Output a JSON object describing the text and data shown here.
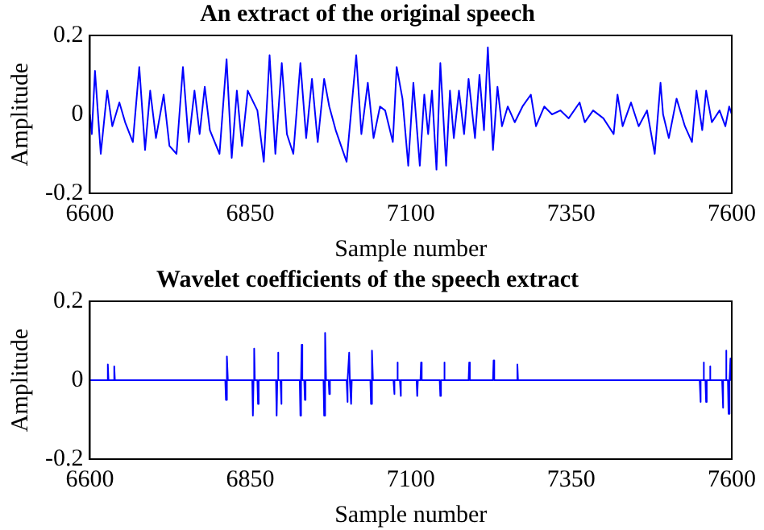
{
  "chart_data": [
    {
      "type": "line",
      "title": "An extract of the original speech",
      "xlabel": "Sample number",
      "ylabel": "Amplitude",
      "color": "#0000ff",
      "xlim": [
        6600,
        7600
      ],
      "xticks": [
        6600,
        6850,
        7100,
        7350,
        7600
      ],
      "ylim": [
        -0.2,
        0.2
      ],
      "yticks": [
        -0.2,
        0,
        0.2
      ],
      "x": [
        6600,
        6603,
        6608,
        6617,
        6627,
        6635,
        6646,
        6655,
        6667,
        6677,
        6686,
        6694,
        6703,
        6715,
        6724,
        6735,
        6745,
        6754,
        6763,
        6771,
        6779,
        6787,
        6802,
        6813,
        6821,
        6829,
        6837,
        6846,
        6861,
        6871,
        6880,
        6889,
        6899,
        6907,
        6917,
        6928,
        6937,
        6946,
        6955,
        6965,
        6973,
        6983,
        7000,
        7015,
        7023,
        7033,
        7042,
        7052,
        7060,
        7072,
        7078,
        7087,
        7096,
        7104,
        7114,
        7121,
        7127,
        7133,
        7140,
        7146,
        7155,
        7161,
        7167,
        7175,
        7183,
        7190,
        7200,
        7207,
        7214,
        7220,
        7228,
        7235,
        7242,
        7251,
        7262,
        7274,
        7287,
        7295,
        7308,
        7320,
        7333,
        7346,
        7363,
        7371,
        7384,
        7400,
        7416,
        7422,
        7430,
        7443,
        7455,
        7468,
        7480,
        7489,
        7493,
        7502,
        7514,
        7527,
        7538,
        7545,
        7554,
        7560,
        7569,
        7581,
        7590,
        7596,
        7600
      ],
      "values": [
        0,
        -0.05,
        0.11,
        -0.1,
        0.06,
        -0.03,
        0.03,
        -0.02,
        -0.07,
        0.12,
        -0.09,
        0.06,
        -0.06,
        0.05,
        -0.08,
        -0.1,
        0.12,
        -0.07,
        0.06,
        -0.05,
        0.07,
        -0.04,
        -0.1,
        0.14,
        -0.11,
        0.06,
        -0.08,
        0.06,
        0.01,
        -0.12,
        0.15,
        -0.1,
        0.13,
        -0.05,
        -0.1,
        0.13,
        -0.06,
        0.09,
        -0.07,
        0.09,
        0.02,
        -0.04,
        -0.12,
        0.15,
        -0.05,
        0.08,
        -0.06,
        0.02,
        0.01,
        -0.07,
        0.12,
        0.04,
        -0.13,
        0.08,
        -0.13,
        0.05,
        -0.05,
        0.06,
        -0.14,
        0.13,
        -0.13,
        0.06,
        -0.06,
        0.06,
        -0.05,
        0.09,
        -0.06,
        0.1,
        -0.04,
        0.17,
        -0.09,
        0.07,
        -0.03,
        0.02,
        -0.02,
        0.02,
        0.05,
        -0.03,
        0.02,
        0,
        0.01,
        -0.01,
        0.03,
        -0.02,
        0.01,
        -0.01,
        -0.05,
        0.05,
        -0.03,
        0.03,
        -0.03,
        0.01,
        -0.1,
        0.08,
        0,
        -0.06,
        0.04,
        -0.03,
        -0.07,
        0.06,
        -0.04,
        0.06,
        -0.02,
        0.01,
        -0.03,
        0.02,
        0
      ]
    },
    {
      "type": "line",
      "title": "Wavelet coefficients of the speech extract",
      "xlabel": "Sample number",
      "ylabel": "Amplitude",
      "color": "#0000ff",
      "xlim": [
        6600,
        7600
      ],
      "xticks": [
        6600,
        6850,
        7100,
        7350,
        7600
      ],
      "ylim": [
        -0.2,
        0.2
      ],
      "yticks": [
        -0.2,
        0,
        0.2
      ],
      "x": [
        6600,
        6627,
        6628,
        6629,
        6637,
        6638,
        6639,
        6811,
        6812,
        6813,
        6814,
        6815,
        6853,
        6854,
        6855,
        6856,
        6857,
        6861,
        6862,
        6863,
        6890,
        6891,
        6892,
        6893,
        6894,
        6897,
        6898,
        6899,
        6927,
        6928,
        6929,
        6930,
        6931,
        6934,
        6935,
        6936,
        6964,
        6965,
        6966,
        6967,
        6968,
        6972,
        6973,
        6974,
        7000,
        7001,
        7002,
        7004,
        7005,
        7007,
        7008,
        7037,
        7038,
        7039,
        7040,
        7041,
        7073,
        7074,
        7075,
        7078,
        7079,
        7080,
        7083,
        7084,
        7085,
        7109,
        7110,
        7111,
        7115,
        7116,
        7117,
        7145,
        7146,
        7147,
        7151,
        7152,
        7153,
        7190,
        7191,
        7192,
        7228,
        7229,
        7230,
        7265,
        7266,
        7267,
        7550,
        7551,
        7552,
        7555,
        7556,
        7557,
        7559,
        7560,
        7561,
        7565,
        7566,
        7567,
        7585,
        7586,
        7587,
        7590,
        7591,
        7592,
        7594,
        7595,
        7596,
        7597,
        7598,
        7599,
        7600
      ],
      "values": [
        0,
        0,
        0.04,
        0,
        0,
        0.035,
        0,
        0,
        -0.05,
        0,
        0.06,
        0,
        0,
        -0.09,
        0,
        0.08,
        0,
        0,
        -0.06,
        0,
        0,
        -0.09,
        0,
        0.07,
        0,
        0,
        -0.06,
        0,
        0,
        -0.09,
        0,
        0.09,
        0,
        0,
        -0.05,
        0,
        0,
        -0.09,
        0,
        0.12,
        0,
        0,
        -0.035,
        0,
        0,
        -0.055,
        0,
        0.07,
        0,
        -0.06,
        0,
        0,
        -0.06,
        0,
        0.075,
        0,
        0,
        -0.035,
        0,
        0,
        0.045,
        0,
        0,
        -0.04,
        0,
        0,
        -0.04,
        0,
        0,
        0.045,
        0,
        0,
        -0.04,
        0,
        0,
        0.045,
        0,
        0,
        0.045,
        0,
        0,
        0.05,
        0,
        0,
        0.04,
        0,
        0,
        -0.055,
        0,
        0,
        0.045,
        0,
        0,
        -0.055,
        0,
        0,
        0.035,
        0,
        0,
        -0.07,
        0,
        0,
        0.075,
        0,
        0,
        -0.085,
        0,
        0,
        0.055,
        0,
        0
      ]
    }
  ]
}
